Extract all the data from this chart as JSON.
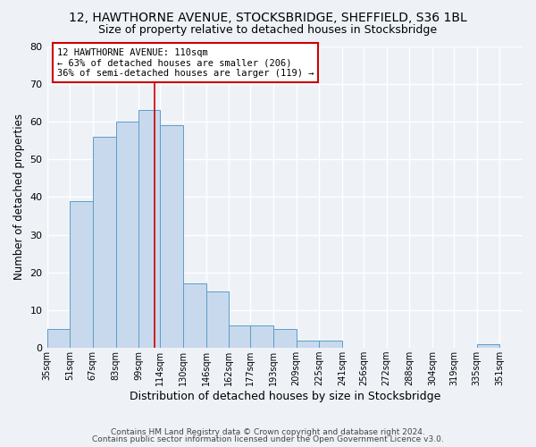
{
  "title": "12, HAWTHORNE AVENUE, STOCKSBRIDGE, SHEFFIELD, S36 1BL",
  "subtitle": "Size of property relative to detached houses in Stocksbridge",
  "xlabel": "Distribution of detached houses by size in Stocksbridge",
  "ylabel": "Number of detached properties",
  "bin_labels": [
    "35sqm",
    "51sqm",
    "67sqm",
    "83sqm",
    "99sqm",
    "114sqm",
    "130sqm",
    "146sqm",
    "162sqm",
    "177sqm",
    "193sqm",
    "209sqm",
    "225sqm",
    "241sqm",
    "256sqm",
    "272sqm",
    "288sqm",
    "304sqm",
    "319sqm",
    "335sqm",
    "351sqm"
  ],
  "bar_heights": [
    5,
    39,
    56,
    60,
    63,
    59,
    17,
    15,
    6,
    6,
    5,
    2,
    2,
    0,
    0,
    0,
    0,
    0,
    0,
    1,
    0
  ],
  "bar_color": "#c8d9ed",
  "bar_edge_color": "#5a9ec8",
  "background_color": "#eef2f7",
  "grid_color": "#ffffff",
  "vline_color": "#cc0000",
  "annotation_text": "12 HAWTHORNE AVENUE: 110sqm\n← 63% of detached houses are smaller (206)\n36% of semi-detached houses are larger (119) →",
  "annotation_box_color": "#ffffff",
  "annotation_box_edge_color": "#cc0000",
  "ylim": [
    0,
    80
  ],
  "yticks": [
    0,
    10,
    20,
    30,
    40,
    50,
    60,
    70,
    80
  ],
  "footer_line1": "Contains HM Land Registry data © Crown copyright and database right 2024.",
  "footer_line2": "Contains public sector information licensed under the Open Government Licence v3.0.",
  "title_fontsize": 10,
  "subtitle_fontsize": 9,
  "bin_edges": [
    35,
    51,
    67,
    83,
    99,
    114,
    130,
    146,
    162,
    177,
    193,
    209,
    225,
    241,
    256,
    272,
    288,
    304,
    319,
    335,
    351,
    367
  ],
  "vline_x": 110
}
